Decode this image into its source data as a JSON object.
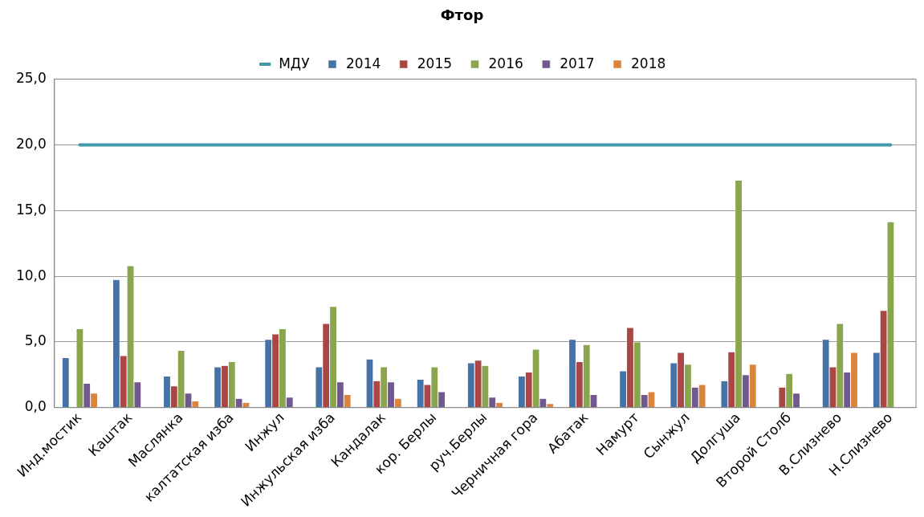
{
  "chart_data": {
    "type": "bar",
    "title": "Фтор",
    "categories": [
      "Инд.мостик",
      "Каштак",
      "Маслянка",
      "калтатская изба",
      "Инжул",
      "Инжульская изба",
      "Кандалак",
      "кор. Берлы",
      "руч.Берлы",
      "Черничная гора",
      "Абатак",
      "Намурт",
      "Сынжул",
      "Долгуша",
      "Второй Столб",
      "В.Слизнево",
      "Н.Слизнево"
    ],
    "series": [
      {
        "name": "2014",
        "color": "#4572a7",
        "values": [
          3.8,
          9.75,
          2.4,
          3.1,
          5.2,
          3.1,
          3.7,
          2.15,
          3.4,
          2.4,
          5.2,
          2.8,
          3.4,
          2.05,
          null,
          5.2,
          4.2
        ]
      },
      {
        "name": "2015",
        "color": "#aa4643",
        "values": [
          null,
          3.95,
          1.65,
          3.2,
          5.6,
          6.4,
          2.05,
          1.75,
          3.6,
          2.7,
          3.5,
          6.1,
          4.2,
          4.25,
          1.55,
          3.1,
          7.4
        ]
      },
      {
        "name": "2016",
        "color": "#89a54e",
        "values": [
          6.0,
          10.8,
          4.35,
          3.5,
          6.0,
          7.7,
          3.1,
          3.1,
          3.2,
          4.45,
          4.8,
          5.0,
          3.3,
          17.3,
          2.6,
          6.4,
          14.15
        ]
      },
      {
        "name": "2017",
        "color": "#71588f",
        "values": [
          1.85,
          1.95,
          1.1,
          0.7,
          0.8,
          1.95,
          1.95,
          1.2,
          0.8,
          0.7,
          1.0,
          1.0,
          1.55,
          2.5,
          1.1,
          2.7,
          null
        ]
      },
      {
        "name": "2018",
        "color": "#db843d",
        "values": [
          1.1,
          null,
          0.5,
          0.4,
          null,
          1.0,
          0.7,
          null,
          0.4,
          0.3,
          null,
          1.2,
          1.75,
          3.3,
          null,
          4.2,
          null
        ]
      },
      {
        "name": "МДУ",
        "type": "line",
        "color": "#4198af",
        "values": [
          20,
          20,
          20,
          20,
          20,
          20,
          20,
          20,
          20,
          20,
          20,
          20,
          20,
          20,
          20,
          20,
          20
        ]
      }
    ],
    "ylim": [
      0,
      25
    ],
    "yticks": [
      {
        "value": 0,
        "label": "0,0"
      },
      {
        "value": 5,
        "label": "5,0"
      },
      {
        "value": 10,
        "label": "10,0"
      },
      {
        "value": 15,
        "label": "15,0"
      },
      {
        "value": 20,
        "label": "20,0"
      },
      {
        "value": 25,
        "label": "25,0"
      }
    ],
    "grid": "y",
    "legend": "top",
    "marker": "none"
  }
}
